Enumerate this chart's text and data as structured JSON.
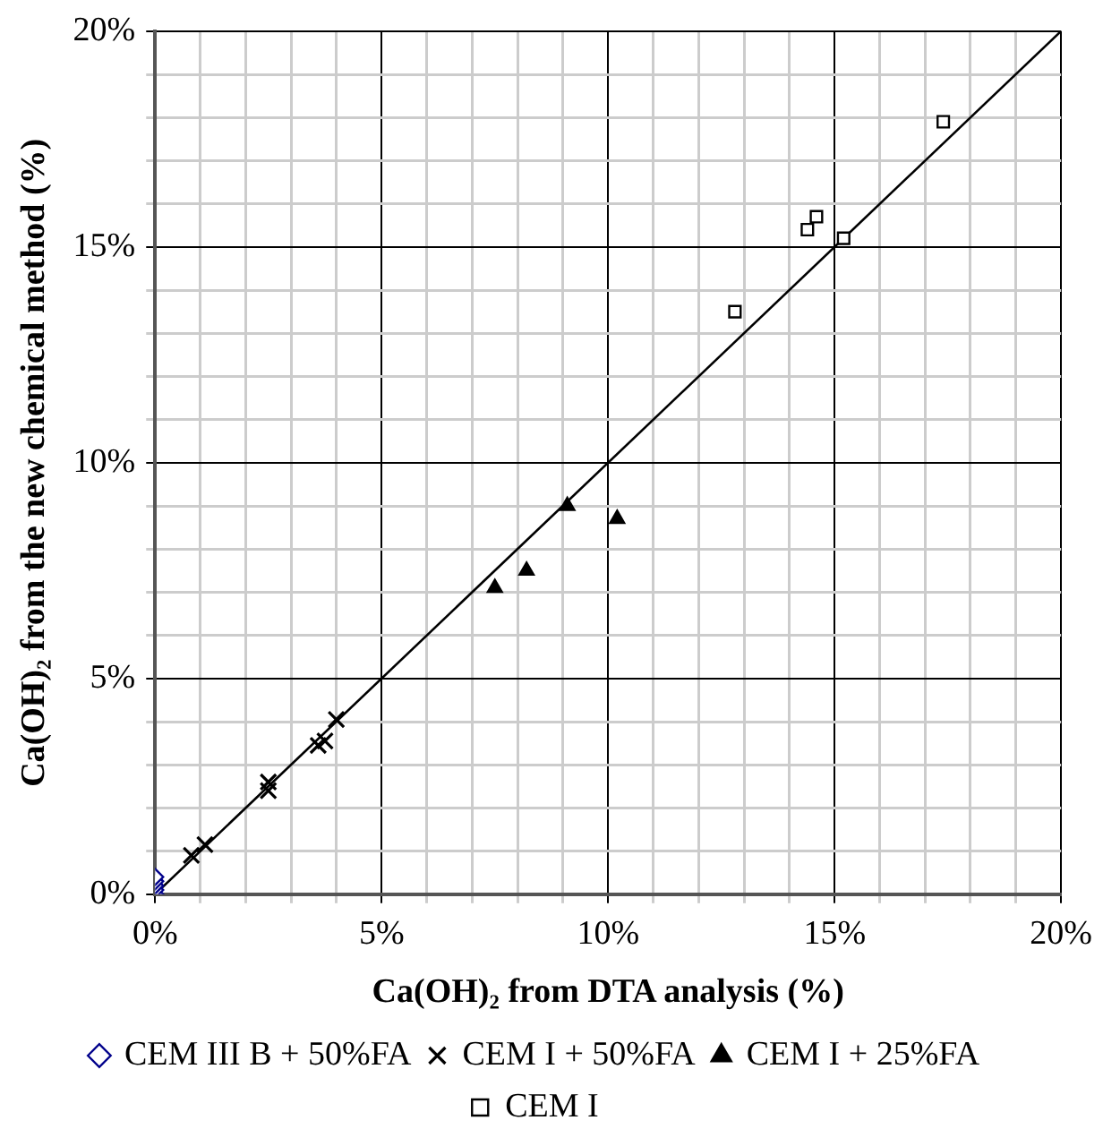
{
  "chart_data": {
    "type": "scatter",
    "xlabel": "Ca(OH)₂ from DTA analysis (%)",
    "ylabel": "Ca(OH)₂ from the new chemical method (%)",
    "xlim": [
      0,
      20
    ],
    "ylim": [
      0,
      20
    ],
    "xticks": [
      {
        "value": 0,
        "label": "0%"
      },
      {
        "value": 1,
        "label": null
      },
      {
        "value": 2,
        "label": null
      },
      {
        "value": 3,
        "label": null
      },
      {
        "value": 4,
        "label": null
      },
      {
        "value": 5,
        "label": "5%"
      },
      {
        "value": 6,
        "label": null
      },
      {
        "value": 7,
        "label": null
      },
      {
        "value": 8,
        "label": null
      },
      {
        "value": 9,
        "label": null
      },
      {
        "value": 10,
        "label": "10%"
      },
      {
        "value": 11,
        "label": null
      },
      {
        "value": 12,
        "label": null
      },
      {
        "value": 13,
        "label": null
      },
      {
        "value": 14,
        "label": null
      },
      {
        "value": 15,
        "label": "15%"
      },
      {
        "value": 16,
        "label": null
      },
      {
        "value": 17,
        "label": null
      },
      {
        "value": 18,
        "label": null
      },
      {
        "value": 19,
        "label": null
      },
      {
        "value": 20,
        "label": "20%"
      }
    ],
    "yticks": [
      {
        "value": 0,
        "label": "0%"
      },
      {
        "value": 1,
        "label": null
      },
      {
        "value": 2,
        "label": null
      },
      {
        "value": 3,
        "label": null
      },
      {
        "value": 4,
        "label": null
      },
      {
        "value": 5,
        "label": "5%"
      },
      {
        "value": 6,
        "label": null
      },
      {
        "value": 7,
        "label": null
      },
      {
        "value": 8,
        "label": null
      },
      {
        "value": 9,
        "label": null
      },
      {
        "value": 10,
        "label": "10%"
      },
      {
        "value": 11,
        "label": null
      },
      {
        "value": 12,
        "label": null
      },
      {
        "value": 13,
        "label": null
      },
      {
        "value": 14,
        "label": null
      },
      {
        "value": 15,
        "label": "15%"
      },
      {
        "value": 16,
        "label": null
      },
      {
        "value": 17,
        "label": null
      },
      {
        "value": 18,
        "label": null
      },
      {
        "value": 19,
        "label": null
      },
      {
        "value": 20,
        "label": "20%"
      }
    ],
    "grid": true,
    "legend": "bottom",
    "series": [
      {
        "name": "CEM III B + 50%FA",
        "color": "#00008b",
        "marker": "diamond",
        "x": [
          0,
          0,
          0,
          0,
          0
        ],
        "values": [
          0,
          0.1,
          0.2,
          0.3,
          0.4
        ]
      },
      {
        "name": "CEM I + 50%FA",
        "color": "#000000",
        "marker": "cross",
        "x": [
          0.8,
          1.1,
          2.5,
          2.5,
          3.6,
          3.75,
          4.0
        ],
        "values": [
          0.9,
          1.15,
          2.4,
          2.6,
          3.45,
          3.55,
          4.05
        ]
      },
      {
        "name": "CEM I + 25%FA",
        "color": "#000000",
        "marker": "triangle",
        "x": [
          7.5,
          8.2,
          9.1,
          10.2
        ],
        "values": [
          7.1,
          7.5,
          9.0,
          8.7
        ]
      },
      {
        "name": "CEM I",
        "color": "#000000",
        "marker": "square",
        "x": [
          12.8,
          14.4,
          14.6,
          15.2,
          17.4
        ],
        "values": [
          13.5,
          15.4,
          15.7,
          15.2,
          17.9
        ]
      },
      {
        "type": "line",
        "color": "#000000",
        "marker": "none",
        "x": [
          0,
          20
        ],
        "values": [
          0,
          20
        ]
      }
    ]
  }
}
